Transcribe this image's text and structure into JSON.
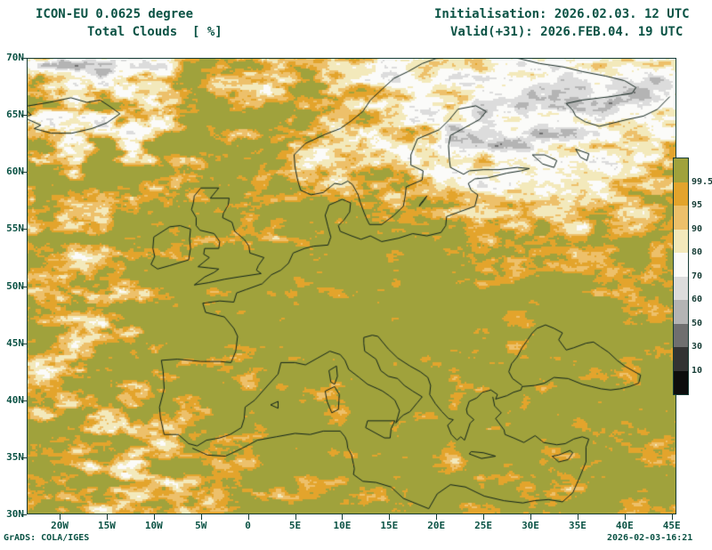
{
  "header": {
    "model": "ICON-EU 0.0625 degree",
    "variable": "Total Clouds  [ %]",
    "initialisation": "Initialisation: 2026.02.03. 12 UTC",
    "valid": "Valid(+31): 2026.FEB.04. 19 UTC"
  },
  "footer": {
    "credit": "GrADS: COLA/IGES",
    "generated": "2026-02-03-16:21"
  },
  "map": {
    "lat_ticks": [
      "70N",
      "65N",
      "60N",
      "55N",
      "50N",
      "45N",
      "40N",
      "35N",
      "30N"
    ],
    "lon_ticks": [
      "20W",
      "15W",
      "10W",
      "5W",
      "0",
      "5E",
      "10E",
      "15E",
      "20E",
      "25E",
      "30E",
      "35E",
      "40E",
      "45E"
    ]
  },
  "legend": {
    "boundary_labels": [
      "99.5",
      "95",
      "90",
      "80",
      "70",
      "60",
      "50",
      "30",
      "10"
    ],
    "cell_colors": [
      "#a0a23c",
      "#e3a42c",
      "#edc06a",
      "#f3e9bb",
      "#fbfbf9",
      "#dcdcdc",
      "#b4b4b4",
      "#6f6f6f",
      "#333333",
      "#0d0d0d"
    ]
  },
  "colors": {
    "text": "#0b5345",
    "frame": "#153c35",
    "coast": "#10231c"
  }
}
